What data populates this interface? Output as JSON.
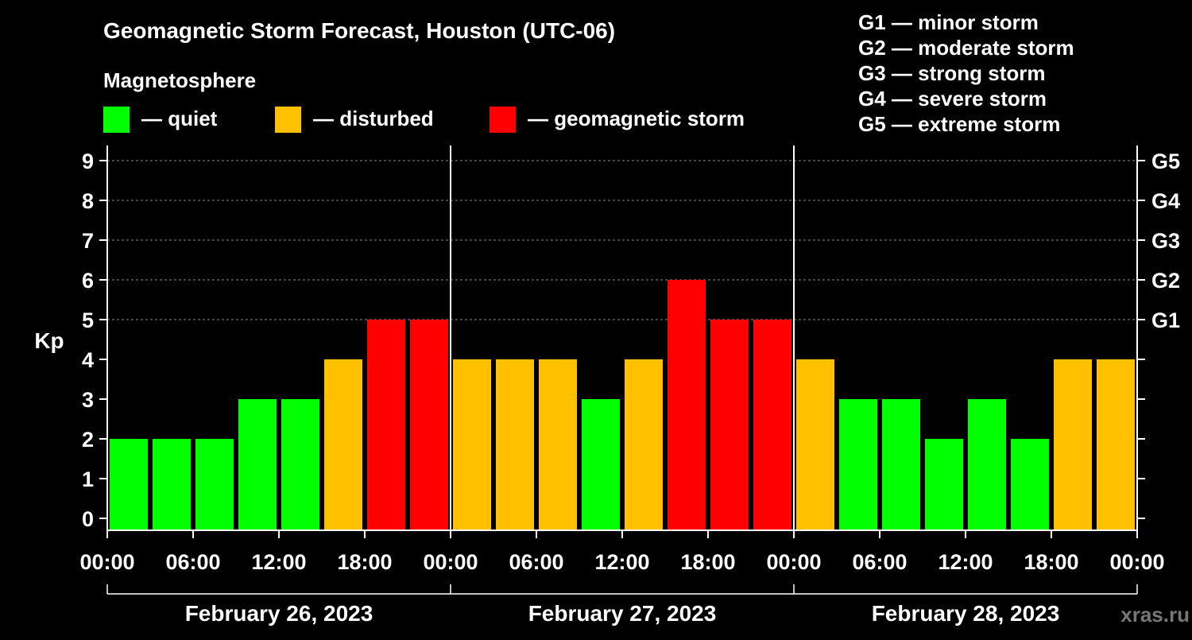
{
  "chart_data": {
    "type": "bar",
    "title": "Geomagnetic Storm Forecast, Houston (UTC-06)",
    "ylabel": "Kp",
    "ylim": [
      0,
      9
    ],
    "yticks": [
      "0",
      "1",
      "2",
      "3",
      "4",
      "5",
      "6",
      "7",
      "8",
      "9"
    ],
    "right_ticks": [
      {
        "kp": 5,
        "label": "G1"
      },
      {
        "kp": 6,
        "label": "G2"
      },
      {
        "kp": 7,
        "label": "G3"
      },
      {
        "kp": 8,
        "label": "G4"
      },
      {
        "kp": 9,
        "label": "G5"
      }
    ],
    "x_tick_labels": [
      "00:00",
      "06:00",
      "12:00",
      "18:00",
      "00:00",
      "06:00",
      "12:00",
      "18:00",
      "00:00",
      "06:00",
      "12:00",
      "18:00",
      "00:00"
    ],
    "days": [
      "February 26, 2023",
      "February 27, 2023",
      "February 28, 2023"
    ],
    "values": [
      2,
      2,
      2,
      3,
      3,
      4,
      5,
      5,
      4,
      4,
      4,
      3,
      4,
      6,
      5,
      5,
      4,
      3,
      3,
      2,
      3,
      2,
      4,
      4
    ],
    "legend": {
      "heading": "Magnetosphere",
      "items": [
        {
          "label": "— quiet",
          "color": "#00ff00"
        },
        {
          "label": "— disturbed",
          "color": "#ffc000"
        },
        {
          "label": "— geomagnetic storm",
          "color": "#ff0000"
        }
      ]
    },
    "storm_scale": [
      "G1 — minor storm",
      "G2 — moderate storm",
      "G3 — strong storm",
      "G4 — severe storm",
      "G5 — extreme storm"
    ]
  },
  "watermark": "xras.ru",
  "colors": {
    "quiet": "#00ff00",
    "disturbed": "#ffc000",
    "storm": "#ff0000",
    "grid": "#888888"
  }
}
